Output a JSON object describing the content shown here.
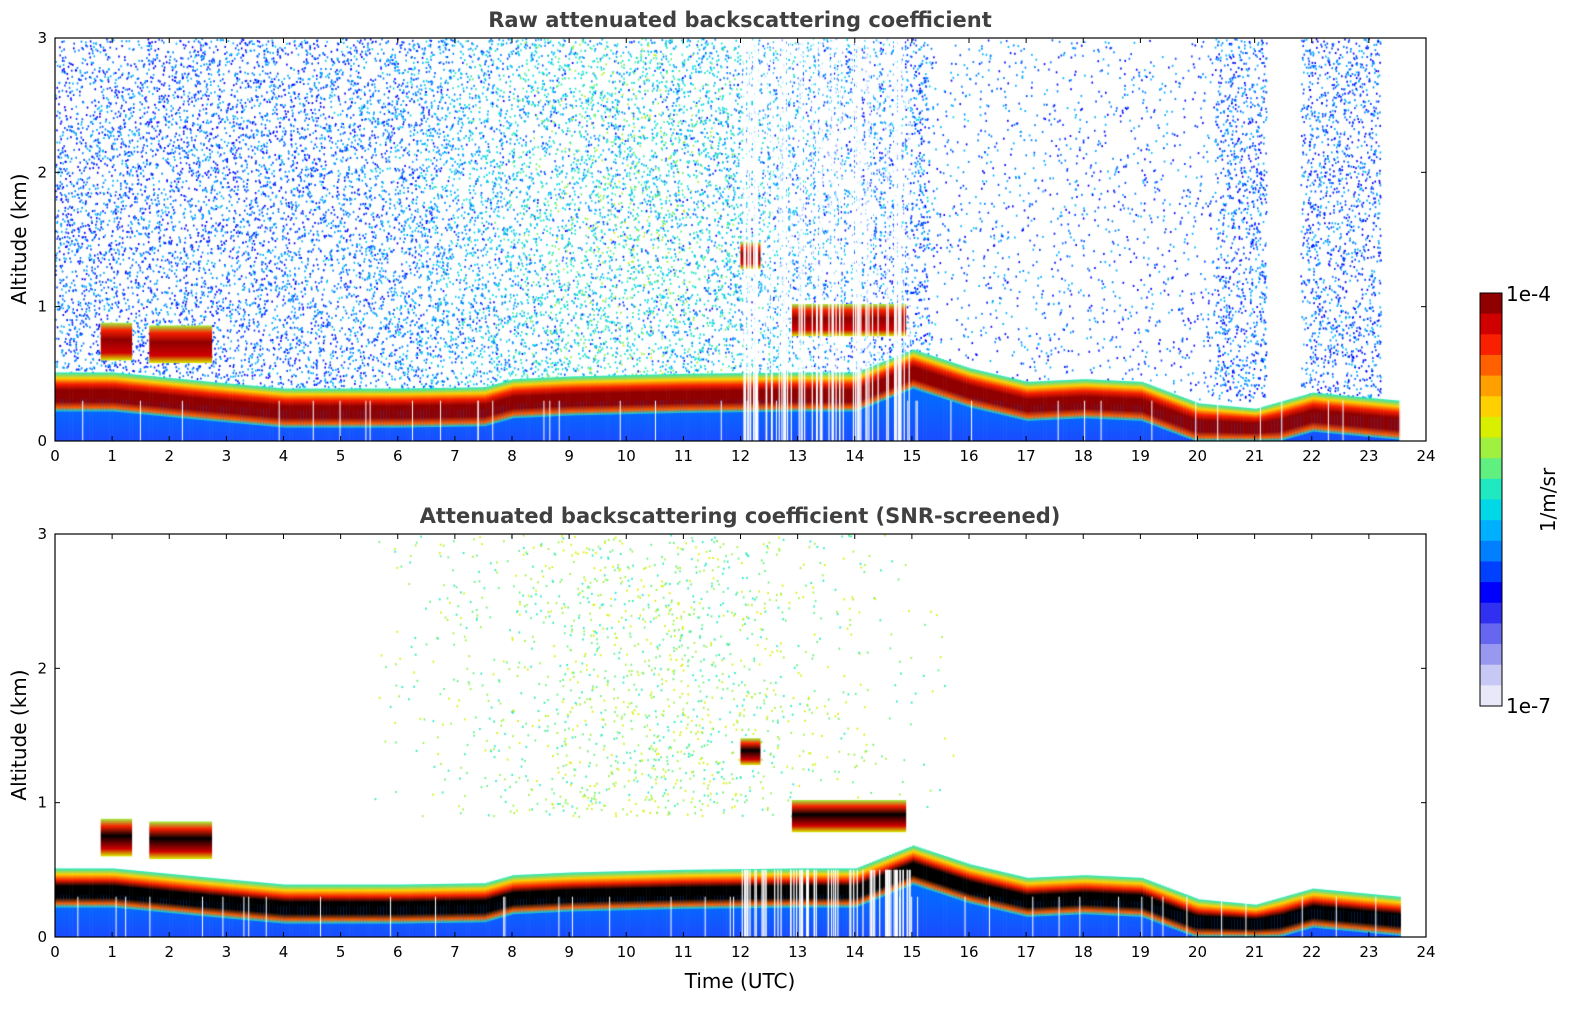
{
  "chart_data": [
    {
      "type": "heatmap",
      "title": "Raw attenuated backscattering coefficient",
      "xlabel": "",
      "ylabel": "Altitude (km)",
      "xlim": [
        0,
        24
      ],
      "ylim": [
        0,
        3
      ],
      "xticks": [
        "0",
        "1",
        "2",
        "3",
        "4",
        "5",
        "6",
        "7",
        "8",
        "9",
        "10",
        "11",
        "12",
        "13",
        "14",
        "15",
        "16",
        "17",
        "18",
        "19",
        "20",
        "21",
        "22",
        "23",
        "24"
      ],
      "yticks": [
        "0",
        "1",
        "2",
        "3"
      ],
      "screened": false,
      "cloud_top_km": [
        [
          0.0,
          0.45
        ],
        [
          1.0,
          0.45
        ],
        [
          2.7,
          0.38
        ],
        [
          4.0,
          0.33
        ],
        [
          6.0,
          0.33
        ],
        [
          7.5,
          0.34
        ],
        [
          8.0,
          0.4
        ],
        [
          9.0,
          0.42
        ],
        [
          11.0,
          0.44
        ],
        [
          13.0,
          0.45
        ],
        [
          14.0,
          0.45
        ],
        [
          15.0,
          0.62
        ],
        [
          16.0,
          0.48
        ],
        [
          17.0,
          0.38
        ],
        [
          18.0,
          0.4
        ],
        [
          19.0,
          0.38
        ],
        [
          20.0,
          0.22
        ],
        [
          21.0,
          0.18
        ],
        [
          22.0,
          0.3
        ],
        [
          23.5,
          0.24
        ]
      ],
      "elevated_layers": [
        {
          "x": [
            0.8,
            1.35
          ],
          "y": [
            0.6,
            0.88
          ]
        },
        {
          "x": [
            1.65,
            2.75
          ],
          "y": [
            0.58,
            0.86
          ]
        },
        {
          "x": [
            12.0,
            12.35
          ],
          "y": [
            1.28,
            1.48
          ]
        },
        {
          "x": [
            12.9,
            14.9
          ],
          "y": [
            0.78,
            1.02
          ]
        }
      ]
    },
    {
      "type": "heatmap",
      "title": "Attenuated backscattering coefficient (SNR-screened)",
      "xlabel": "Time (UTC)",
      "ylabel": "Altitude (km)",
      "xlim": [
        0,
        24
      ],
      "ylim": [
        0,
        3
      ],
      "xticks": [
        "0",
        "1",
        "2",
        "3",
        "4",
        "5",
        "6",
        "7",
        "8",
        "9",
        "10",
        "11",
        "12",
        "13",
        "14",
        "15",
        "16",
        "17",
        "18",
        "19",
        "20",
        "21",
        "22",
        "23",
        "24"
      ],
      "yticks": [
        "0",
        "1",
        "2",
        "3"
      ],
      "screened": true,
      "cloud_top_km": [
        [
          0.0,
          0.45
        ],
        [
          1.0,
          0.45
        ],
        [
          2.7,
          0.38
        ],
        [
          4.0,
          0.33
        ],
        [
          6.0,
          0.33
        ],
        [
          7.5,
          0.34
        ],
        [
          8.0,
          0.4
        ],
        [
          9.0,
          0.42
        ],
        [
          11.0,
          0.44
        ],
        [
          13.0,
          0.45
        ],
        [
          14.0,
          0.45
        ],
        [
          15.0,
          0.62
        ],
        [
          16.0,
          0.48
        ],
        [
          17.0,
          0.38
        ],
        [
          18.0,
          0.4
        ],
        [
          19.0,
          0.38
        ],
        [
          20.0,
          0.22
        ],
        [
          21.0,
          0.18
        ],
        [
          22.0,
          0.3
        ],
        [
          23.5,
          0.24
        ]
      ],
      "elevated_layers": [
        {
          "x": [
            0.8,
            1.35
          ],
          "y": [
            0.6,
            0.88
          ]
        },
        {
          "x": [
            1.65,
            2.75
          ],
          "y": [
            0.58,
            0.86
          ]
        },
        {
          "x": [
            12.0,
            12.35
          ],
          "y": [
            1.28,
            1.48
          ]
        },
        {
          "x": [
            12.9,
            14.9
          ],
          "y": [
            0.78,
            1.02
          ]
        }
      ]
    }
  ],
  "colorbar": {
    "label": "1/m/sr",
    "max_label": "1e-4",
    "min_label": "1e-7",
    "colors": [
      "#e8e8f8",
      "#c8c8f4",
      "#9898f0",
      "#6666f0",
      "#3030f0",
      "#0000ff",
      "#0040ff",
      "#0080ff",
      "#00b0ff",
      "#00d8e8",
      "#20e8c0",
      "#60f080",
      "#a0f040",
      "#d8f000",
      "#ffd000",
      "#ffa000",
      "#ff6000",
      "#f82000",
      "#d00000",
      "#900000"
    ]
  }
}
